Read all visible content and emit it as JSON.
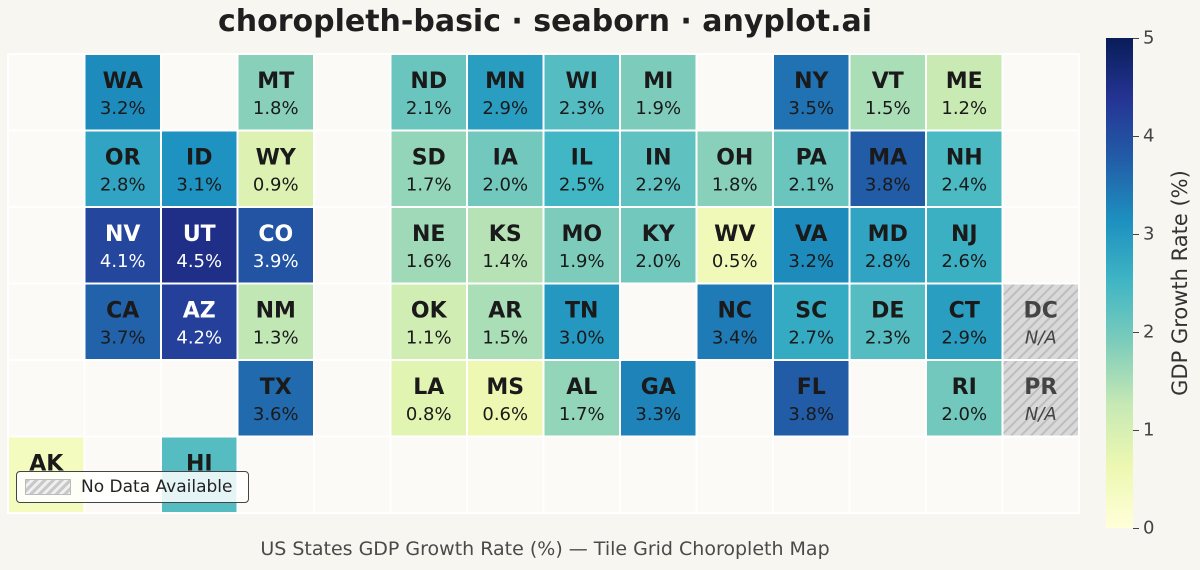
{
  "chart_data": {
    "type": "heatmap",
    "title": "choropleth-basic · seaborn · anyplot.ai",
    "xlabel": "US States GDP Growth Rate (%) — Tile Grid Choropleth Map",
    "colorbar": {
      "label": "GDP Growth Rate (%)",
      "range": [
        0,
        5
      ],
      "ticks": [
        "0",
        "1",
        "2",
        "3",
        "4",
        "5"
      ],
      "colormap": "YlGnBu"
    },
    "legend": {
      "label": "No Data Available",
      "position": "bottom-left"
    },
    "na_label": "N/A",
    "grid": {
      "rows": 6,
      "cols": 14
    },
    "tiles": [
      {
        "state": "WA",
        "row": 0,
        "col": 1,
        "value": 3.2,
        "label": "3.2%"
      },
      {
        "state": "MT",
        "row": 0,
        "col": 3,
        "value": 1.8,
        "label": "1.8%"
      },
      {
        "state": "ND",
        "row": 0,
        "col": 5,
        "value": 2.1,
        "label": "2.1%"
      },
      {
        "state": "MN",
        "row": 0,
        "col": 6,
        "value": 2.9,
        "label": "2.9%"
      },
      {
        "state": "WI",
        "row": 0,
        "col": 7,
        "value": 2.3,
        "label": "2.3%"
      },
      {
        "state": "MI",
        "row": 0,
        "col": 8,
        "value": 1.9,
        "label": "1.9%"
      },
      {
        "state": "NY",
        "row": 0,
        "col": 10,
        "value": 3.5,
        "label": "3.5%"
      },
      {
        "state": "VT",
        "row": 0,
        "col": 11,
        "value": 1.5,
        "label": "1.5%"
      },
      {
        "state": "ME",
        "row": 0,
        "col": 12,
        "value": 1.2,
        "label": "1.2%"
      },
      {
        "state": "OR",
        "row": 1,
        "col": 1,
        "value": 2.8,
        "label": "2.8%"
      },
      {
        "state": "ID",
        "row": 1,
        "col": 2,
        "value": 3.1,
        "label": "3.1%"
      },
      {
        "state": "WY",
        "row": 1,
        "col": 3,
        "value": 0.9,
        "label": "0.9%"
      },
      {
        "state": "SD",
        "row": 1,
        "col": 5,
        "value": 1.7,
        "label": "1.7%"
      },
      {
        "state": "IA",
        "row": 1,
        "col": 6,
        "value": 2.0,
        "label": "2.0%"
      },
      {
        "state": "IL",
        "row": 1,
        "col": 7,
        "value": 2.5,
        "label": "2.5%"
      },
      {
        "state": "IN",
        "row": 1,
        "col": 8,
        "value": 2.2,
        "label": "2.2%"
      },
      {
        "state": "OH",
        "row": 1,
        "col": 9,
        "value": 1.8,
        "label": "1.8%"
      },
      {
        "state": "PA",
        "row": 1,
        "col": 10,
        "value": 2.1,
        "label": "2.1%"
      },
      {
        "state": "MA",
        "row": 1,
        "col": 11,
        "value": 3.8,
        "label": "3.8%"
      },
      {
        "state": "NH",
        "row": 1,
        "col": 12,
        "value": 2.4,
        "label": "2.4%"
      },
      {
        "state": "NV",
        "row": 2,
        "col": 1,
        "value": 4.1,
        "label": "4.1%"
      },
      {
        "state": "UT",
        "row": 2,
        "col": 2,
        "value": 4.5,
        "label": "4.5%"
      },
      {
        "state": "CO",
        "row": 2,
        "col": 3,
        "value": 3.9,
        "label": "3.9%"
      },
      {
        "state": "NE",
        "row": 2,
        "col": 5,
        "value": 1.6,
        "label": "1.6%"
      },
      {
        "state": "KS",
        "row": 2,
        "col": 6,
        "value": 1.4,
        "label": "1.4%"
      },
      {
        "state": "MO",
        "row": 2,
        "col": 7,
        "value": 1.9,
        "label": "1.9%"
      },
      {
        "state": "KY",
        "row": 2,
        "col": 8,
        "value": 2.0,
        "label": "2.0%"
      },
      {
        "state": "WV",
        "row": 2,
        "col": 9,
        "value": 0.5,
        "label": "0.5%"
      },
      {
        "state": "VA",
        "row": 2,
        "col": 10,
        "value": 3.2,
        "label": "3.2%"
      },
      {
        "state": "MD",
        "row": 2,
        "col": 11,
        "value": 2.8,
        "label": "2.8%"
      },
      {
        "state": "NJ",
        "row": 2,
        "col": 12,
        "value": 2.6,
        "label": "2.6%"
      },
      {
        "state": "CA",
        "row": 3,
        "col": 1,
        "value": 3.7,
        "label": "3.7%"
      },
      {
        "state": "AZ",
        "row": 3,
        "col": 2,
        "value": 4.2,
        "label": "4.2%"
      },
      {
        "state": "NM",
        "row": 3,
        "col": 3,
        "value": 1.3,
        "label": "1.3%"
      },
      {
        "state": "OK",
        "row": 3,
        "col": 5,
        "value": 1.1,
        "label": "1.1%"
      },
      {
        "state": "AR",
        "row": 3,
        "col": 6,
        "value": 1.5,
        "label": "1.5%"
      },
      {
        "state": "TN",
        "row": 3,
        "col": 7,
        "value": 3.0,
        "label": "3.0%"
      },
      {
        "state": "NC",
        "row": 3,
        "col": 9,
        "value": 3.4,
        "label": "3.4%"
      },
      {
        "state": "SC",
        "row": 3,
        "col": 10,
        "value": 2.7,
        "label": "2.7%"
      },
      {
        "state": "DE",
        "row": 3,
        "col": 11,
        "value": 2.3,
        "label": "2.3%"
      },
      {
        "state": "CT",
        "row": 3,
        "col": 12,
        "value": 2.9,
        "label": "2.9%"
      },
      {
        "state": "DC",
        "row": 3,
        "col": 13,
        "value": null,
        "label": "N/A"
      },
      {
        "state": "TX",
        "row": 4,
        "col": 3,
        "value": 3.6,
        "label": "3.6%"
      },
      {
        "state": "LA",
        "row": 4,
        "col": 5,
        "value": 0.8,
        "label": "0.8%"
      },
      {
        "state": "MS",
        "row": 4,
        "col": 6,
        "value": 0.6,
        "label": "0.6%"
      },
      {
        "state": "AL",
        "row": 4,
        "col": 7,
        "value": 1.7,
        "label": "1.7%"
      },
      {
        "state": "GA",
        "row": 4,
        "col": 8,
        "value": 3.3,
        "label": "3.3%"
      },
      {
        "state": "FL",
        "row": 4,
        "col": 10,
        "value": 3.8,
        "label": "3.8%"
      },
      {
        "state": "RI",
        "row": 4,
        "col": 12,
        "value": 2.0,
        "label": "2.0%"
      },
      {
        "state": "PR",
        "row": 4,
        "col": 13,
        "value": null,
        "label": "N/A"
      },
      {
        "state": "AK",
        "row": 5,
        "col": 0,
        "value": 0.4,
        "label": ""
      },
      {
        "state": "HI",
        "row": 5,
        "col": 2,
        "value": 2.3,
        "label": ""
      }
    ]
  }
}
